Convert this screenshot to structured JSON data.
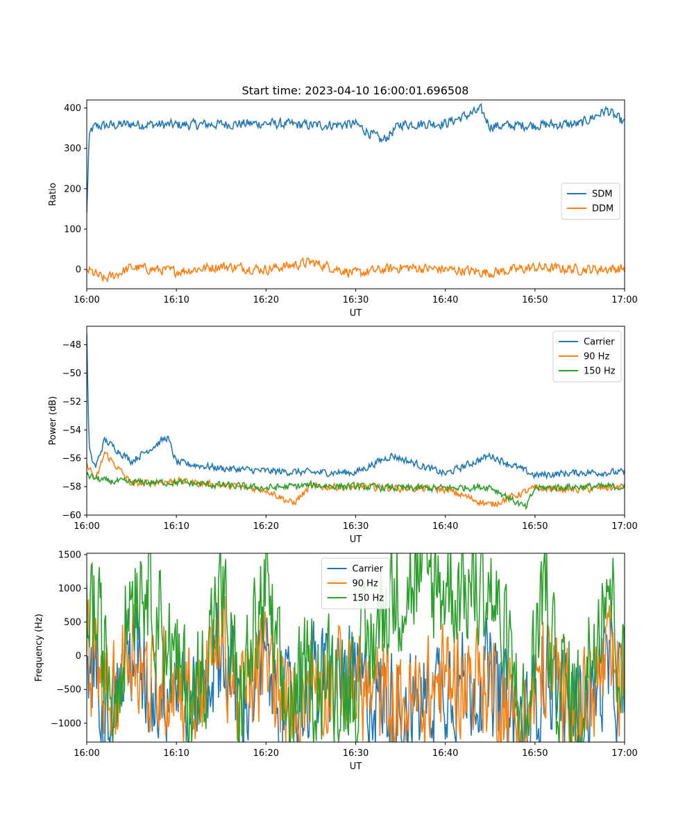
{
  "figure_title": "Start time: 2023-04-10 16:00:01.696508",
  "colors": {
    "blue": "#1f77b4",
    "orange": "#ff7f0e",
    "green": "#2ca02c"
  },
  "chart_data": [
    {
      "type": "line",
      "title": "Start time: 2023-04-10 16:00:01.696508",
      "xlabel": "UT",
      "ylabel": "Ratio",
      "xlim": [
        "16:00",
        "17:00"
      ],
      "ylim": [
        -48,
        420
      ],
      "x_ticks": [
        "16:00",
        "16:10",
        "16:20",
        "16:30",
        "16:40",
        "16:50",
        "17:00"
      ],
      "y_ticks": [
        0,
        100,
        200,
        300,
        400
      ],
      "y_tick_labels": [
        "0",
        "100",
        "200",
        "300",
        "400"
      ],
      "legend_position": "center-right",
      "grid": false,
      "series": [
        {
          "name": "SDM",
          "color": "#1f77b4",
          "x": [
            "16:00",
            "16:00:15",
            "16:00:30",
            "16:01",
            "16:05",
            "16:10",
            "16:15",
            "16:20",
            "16:25",
            "16:30",
            "16:33",
            "16:35",
            "16:40",
            "16:44",
            "16:45",
            "16:50",
            "16:55",
            "16:58",
            "17:00"
          ],
          "y": [
            140,
            320,
            345,
            355,
            360,
            358,
            360,
            362,
            357,
            360,
            318,
            360,
            362,
            395,
            355,
            358,
            360,
            395,
            362
          ]
        },
        {
          "name": "DDM",
          "color": "#ff7f0e",
          "x": [
            "16:00",
            "16:02",
            "16:05",
            "16:10",
            "16:15",
            "16:20",
            "16:25",
            "16:30",
            "16:35",
            "16:40",
            "16:45",
            "16:50",
            "16:55",
            "17:00"
          ],
          "y": [
            0,
            -25,
            5,
            -5,
            8,
            0,
            18,
            -10,
            5,
            0,
            -8,
            5,
            0,
            2
          ]
        }
      ]
    },
    {
      "type": "line",
      "title": "",
      "xlabel": "UT",
      "ylabel": "Power (dB)",
      "xlim": [
        "16:00",
        "17:00"
      ],
      "ylim": [
        -60,
        -46.7
      ],
      "x_ticks": [
        "16:00",
        "16:10",
        "16:20",
        "16:30",
        "16:40",
        "16:50",
        "17:00"
      ],
      "y_ticks": [
        -60,
        -58,
        -56,
        -54,
        -52,
        -50,
        -48
      ],
      "y_tick_labels": [
        "−60",
        "−58",
        "−56",
        "−54",
        "−52",
        "−50",
        "−48"
      ],
      "legend_position": "upper-right",
      "grid": false,
      "series": [
        {
          "name": "Carrier",
          "color": "#1f77b4",
          "x": [
            "16:00",
            "16:00:15",
            "16:00:30",
            "16:01",
            "16:02",
            "16:05",
            "16:09",
            "16:10",
            "16:15",
            "16:20",
            "16:25",
            "16:30",
            "16:34",
            "16:40",
            "16:45",
            "16:50",
            "16:55",
            "17:00"
          ],
          "y": [
            -47.2,
            -55.2,
            -56.0,
            -56.6,
            -54.7,
            -56.2,
            -54.5,
            -56.3,
            -56.7,
            -56.9,
            -57.0,
            -57.0,
            -55.8,
            -57.1,
            -55.8,
            -57.2,
            -57.0,
            -57.0
          ]
        },
        {
          "name": "90 Hz",
          "color": "#ff7f0e",
          "x": [
            "16:00",
            "16:01",
            "16:02",
            "16:05",
            "16:10",
            "16:15",
            "16:20",
            "16:23",
            "16:25",
            "16:30",
            "16:35",
            "16:40",
            "16:45",
            "16:50",
            "16:55",
            "17:00"
          ],
          "y": [
            -56.3,
            -57.6,
            -55.6,
            -57.8,
            -57.6,
            -57.9,
            -58.2,
            -59.2,
            -58.0,
            -58.0,
            -58.1,
            -58.2,
            -59.3,
            -58.1,
            -58.2,
            -58.0
          ]
        },
        {
          "name": "150 Hz",
          "color": "#2ca02c",
          "x": [
            "16:00",
            "16:01",
            "16:02",
            "16:05",
            "16:10",
            "16:15",
            "16:20",
            "16:25",
            "16:30",
            "16:35",
            "16:40",
            "16:45",
            "16:49",
            "16:50",
            "16:55",
            "17:00"
          ],
          "y": [
            -57.2,
            -57.4,
            -57.6,
            -57.7,
            -57.7,
            -57.9,
            -58.1,
            -57.9,
            -58.0,
            -58.1,
            -58.1,
            -58.0,
            -59.5,
            -58.1,
            -58.0,
            -58.0
          ]
        }
      ]
    },
    {
      "type": "line",
      "title": "",
      "xlabel": "UT",
      "ylabel": "Frequency (Hz)",
      "xlim": [
        "16:00",
        "17:00"
      ],
      "ylim": [
        -1280,
        1520
      ],
      "x_ticks": [
        "16:00",
        "16:10",
        "16:20",
        "16:30",
        "16:40",
        "16:50",
        "17:00"
      ],
      "y_ticks": [
        -1000,
        -500,
        0,
        500,
        1000,
        1500
      ],
      "y_tick_labels": [
        "−1000",
        "−500",
        "0",
        "500",
        "1000",
        "1500"
      ],
      "legend_position": "upper-center",
      "grid": false,
      "series": [
        {
          "name": "Carrier",
          "color": "#1f77b4",
          "x": [
            "16:00",
            "16:03",
            "16:05",
            "16:07",
            "16:10",
            "16:12",
            "16:15",
            "16:17",
            "16:20",
            "16:22",
            "16:25",
            "16:30",
            "16:34",
            "16:37",
            "16:40",
            "16:45",
            "16:49",
            "16:51",
            "16:55",
            "16:58",
            "17:00"
          ],
          "y": [
            0,
            -650,
            100,
            -550,
            -300,
            -750,
            150,
            -750,
            -100,
            -870,
            -350,
            -450,
            -700,
            -750,
            -350,
            -400,
            -1150,
            -200,
            -850,
            -200,
            -600
          ]
        },
        {
          "name": "90 Hz",
          "color": "#ff7f0e",
          "x": [
            "16:00",
            "16:03",
            "16:05",
            "16:07",
            "16:10",
            "16:12",
            "16:15",
            "16:17",
            "16:20",
            "16:22",
            "16:25",
            "16:30",
            "16:34",
            "16:37",
            "16:40",
            "16:45",
            "16:49",
            "16:51",
            "16:55",
            "16:58",
            "17:00"
          ],
          "y": [
            30,
            -620,
            250,
            -520,
            -260,
            -720,
            300,
            -720,
            -70,
            -840,
            -320,
            -420,
            -670,
            -720,
            -320,
            -370,
            -1100,
            -170,
            -820,
            -170,
            -560
          ]
        },
        {
          "name": "150 Hz",
          "color": "#2ca02c",
          "x": [
            "16:00",
            "16:03",
            "16:05",
            "16:07",
            "16:10",
            "16:12",
            "16:15",
            "16:17",
            "16:20",
            "16:22",
            "16:25",
            "16:30",
            "16:34",
            "16:37",
            "16:40",
            "16:45",
            "16:49",
            "16:51",
            "16:52",
            "16:55",
            "16:58",
            "17:00"
          ],
          "y": [
            1050,
            -600,
            1080,
            1180,
            -250,
            -700,
            950,
            -700,
            960,
            -830,
            -300,
            -400,
            950,
            1100,
            1050,
            1000,
            -1080,
            1250,
            -150,
            -800,
            1380,
            -550
          ]
        }
      ]
    }
  ]
}
